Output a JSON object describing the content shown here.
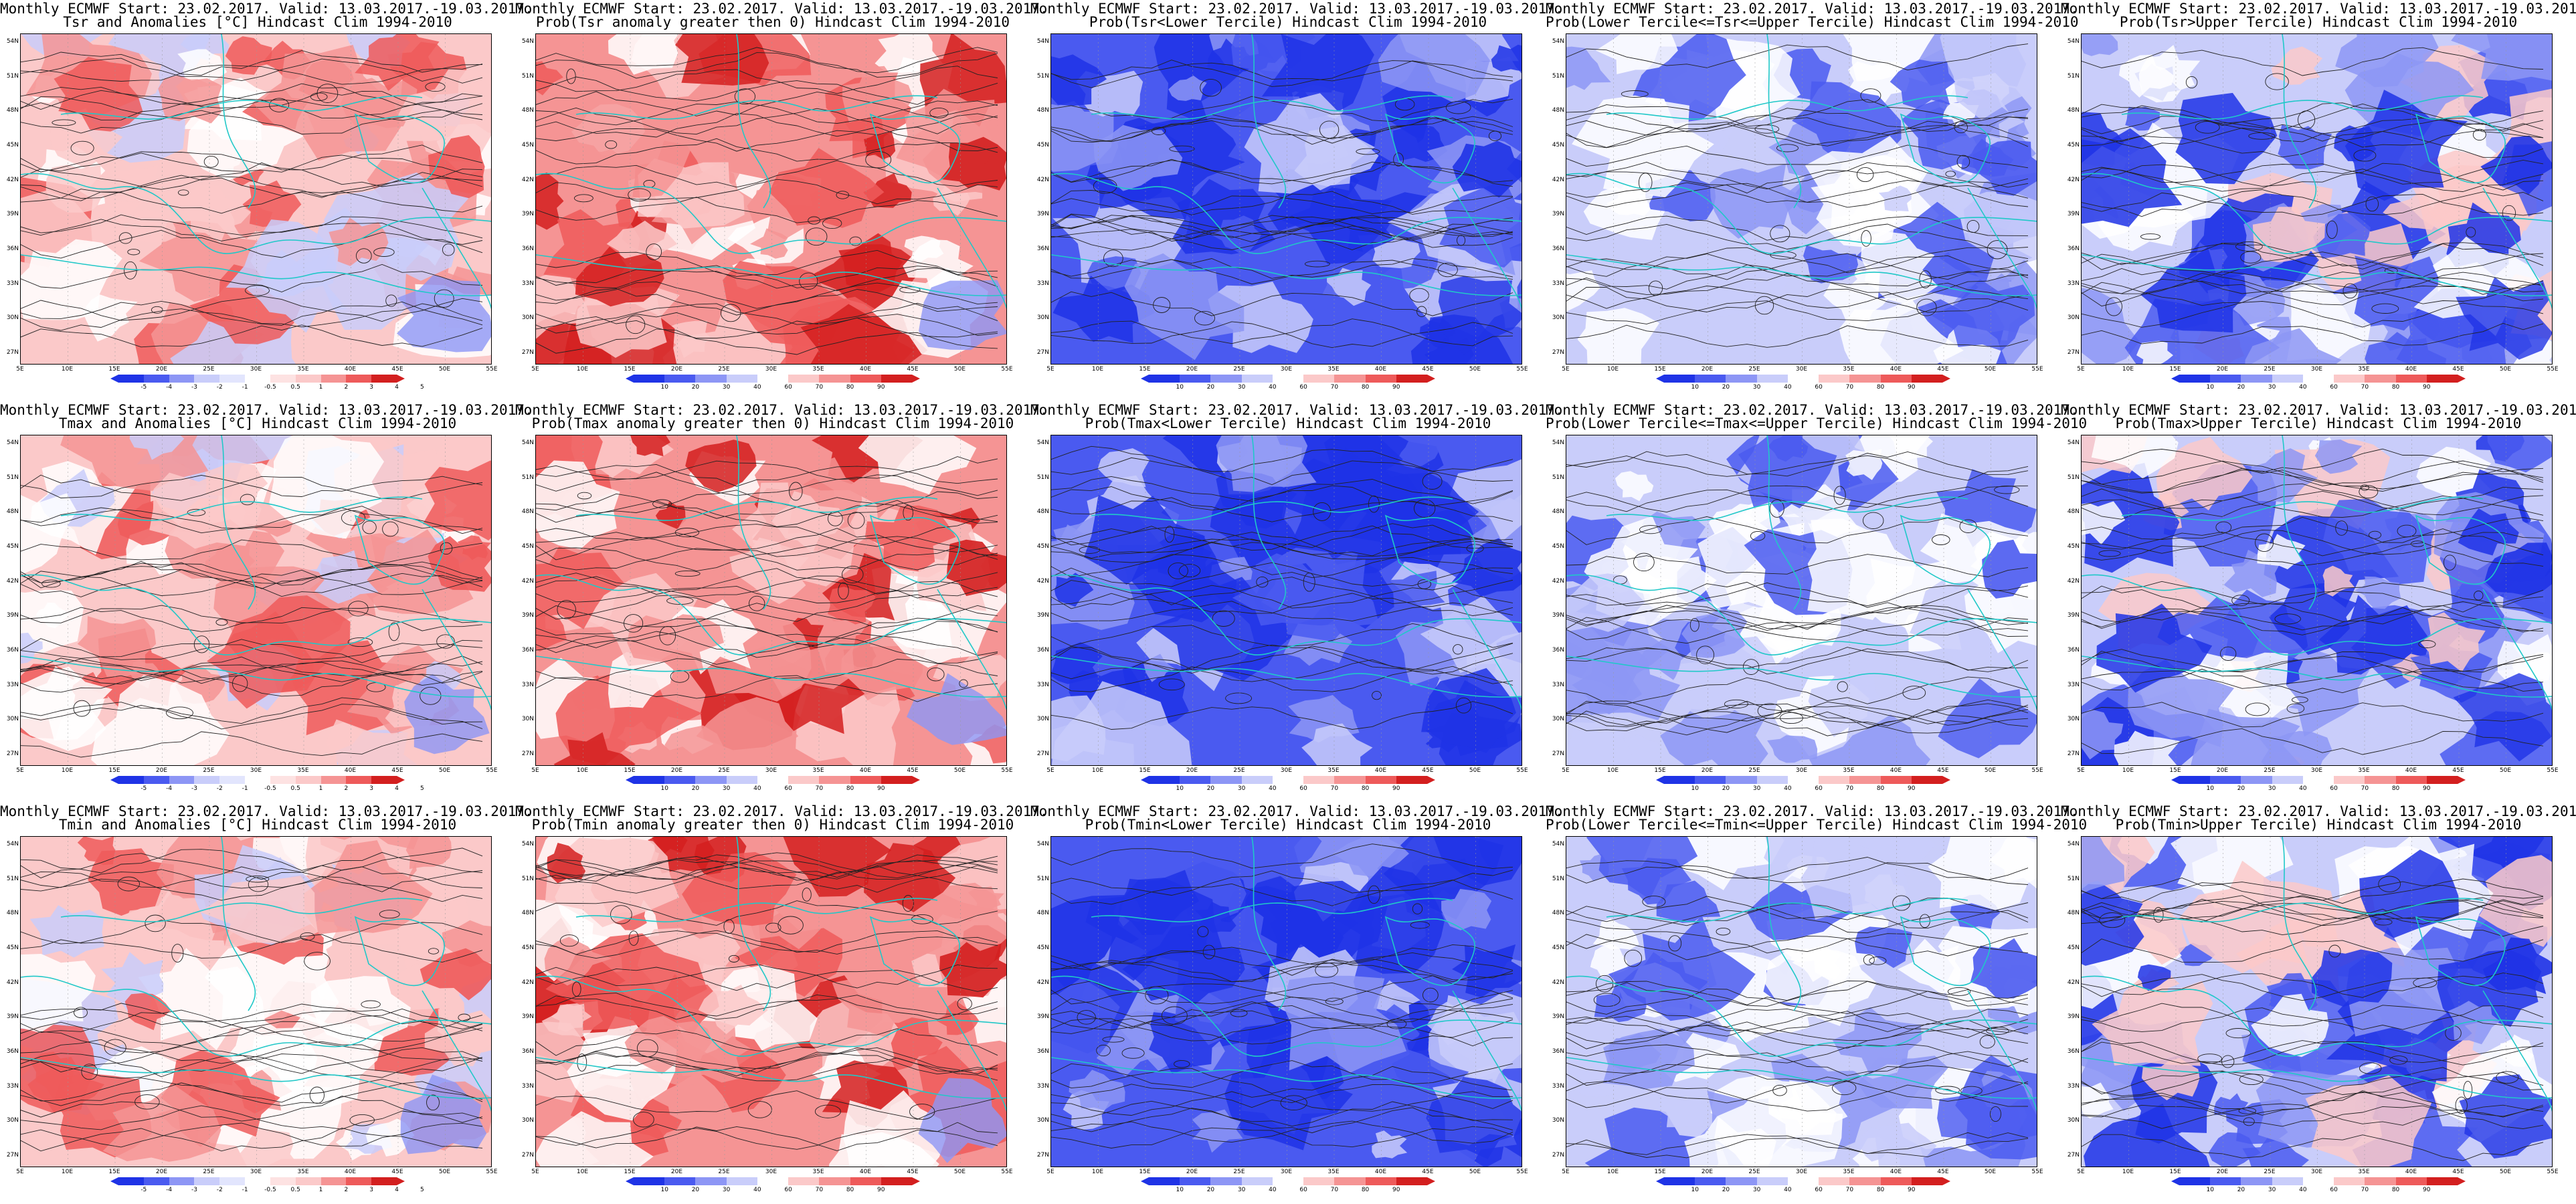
{
  "months_header": "Monthly ECMWF Start: 23.02.2017. Valid: 13.03.2017.-19.03.2017.",
  "lat_ticks": [
    "54N",
    "51N",
    "48N",
    "45N",
    "42N",
    "39N",
    "36N",
    "33N",
    "30N",
    "27N"
  ],
  "lon_ticks": [
    "5E",
    "10E",
    "15E",
    "20E",
    "25E",
    "30E",
    "35E",
    "40E",
    "45E",
    "50E",
    "55E"
  ],
  "anomaly_ticks": [
    "-5",
    "-4",
    "-3",
    "-2",
    "-1",
    "-0.5",
    "0.5",
    "1",
    "2",
    "3",
    "4",
    "5"
  ],
  "prob_ticks": [
    "10",
    "20",
    "30",
    "40",
    "60",
    "70",
    "80",
    "90"
  ],
  "colors": {
    "deep_blue": "#1f33e6",
    "blue": "#4a5af0",
    "mid_blue": "#8d96f5",
    "light_blue": "#c9cdfa",
    "white": "#ffffff",
    "light_red": "#fbc9c9",
    "mid_red": "#f59494",
    "red": "#ee5a5a",
    "deep_red": "#d31f1f",
    "coast": "#20c8c8",
    "contour": "#222222"
  },
  "panels": [
    {
      "title": "Tsr and Anomalies [°C] Hindcast Clim 1994-2010",
      "scale": "anomaly",
      "tone": "warm"
    },
    {
      "title": "Prob(Tsr anomaly greater then 0) Hindcast Clim 1994-2010",
      "scale": "prob",
      "tone": "warmstrong"
    },
    {
      "title": "Prob(Tsr<Lower Tercile) Hindcast Clim 1994-2010",
      "scale": "prob",
      "tone": "coldstrong"
    },
    {
      "title": "Prob(Lower Tercile<=Tsr<=Upper Tercile) Hindcast Clim 1994-2010",
      "scale": "prob",
      "tone": "coldlight"
    },
    {
      "title": "Prob(Tsr>Upper Tercile) Hindcast Clim 1994-2010",
      "scale": "prob",
      "tone": "mixed"
    },
    {
      "title": "Tmax and Anomalies [°C] Hindcast Clim 1994-2010",
      "scale": "anomaly",
      "tone": "warm"
    },
    {
      "title": "Prob(Tmax anomaly greater then 0) Hindcast Clim 1994-2010",
      "scale": "prob",
      "tone": "warmstrong"
    },
    {
      "title": "Prob(Tmax<Lower Tercile) Hindcast Clim 1994-2010",
      "scale": "prob",
      "tone": "coldstrong"
    },
    {
      "title": "Prob(Lower Tercile<=Tmax<=Upper Tercile) Hindcast Clim 1994-2010",
      "scale": "prob",
      "tone": "coldlight"
    },
    {
      "title": "Prob(Tmax>Upper Tercile) Hindcast Clim 1994-2010",
      "scale": "prob",
      "tone": "mixed"
    },
    {
      "title": "Tmin and Anomalies [°C] Hindcast Clim 1994-2010",
      "scale": "anomaly",
      "tone": "warm"
    },
    {
      "title": "Prob(Tmin anomaly greater then 0) Hindcast Clim 1994-2010",
      "scale": "prob",
      "tone": "warmstrong"
    },
    {
      "title": "Prob(Tmin<Lower Tercile) Hindcast Clim 1994-2010",
      "scale": "prob",
      "tone": "coldstrong"
    },
    {
      "title": "Prob(Lower Tercile<=Tmin<=Upper Tercile) Hindcast Clim 1994-2010",
      "scale": "prob",
      "tone": "coldlight"
    },
    {
      "title": "Prob(Tmin>Upper Tercile) Hindcast Clim 1994-2010",
      "scale": "prob",
      "tone": "mixed"
    }
  ]
}
